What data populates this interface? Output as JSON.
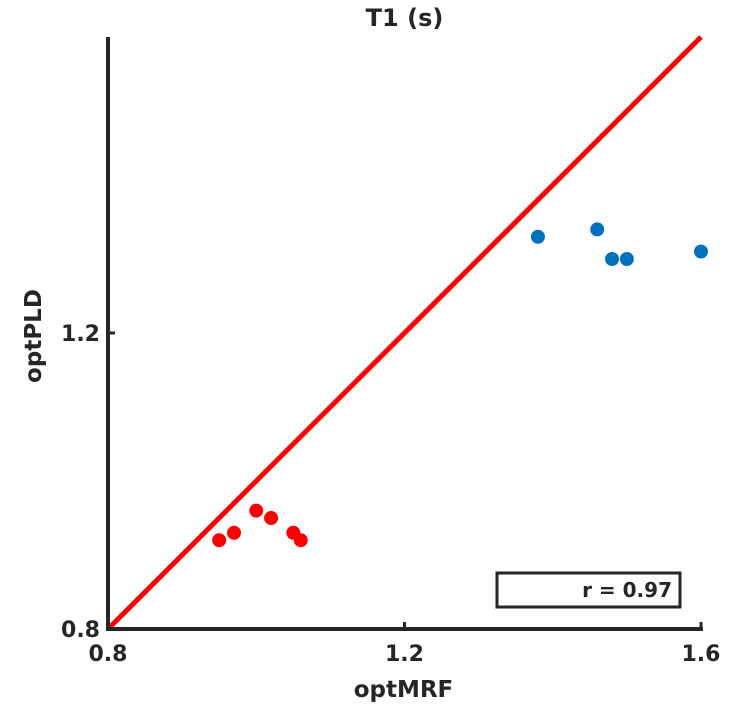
{
  "chart_data": {
    "type": "scatter",
    "title": "T1 (s)",
    "xlabel": "optMRF",
    "ylabel": "optPLD",
    "xlim": [
      0.8,
      1.6
    ],
    "ylim": [
      0.8,
      1.6
    ],
    "xticks": [
      "0.8",
      "1.2",
      "1.6"
    ],
    "yticks": [
      "0.8",
      "1.2"
    ],
    "grid": false,
    "series": [
      {
        "color": "#0072BD",
        "x": [
          1.38,
          1.46,
          1.48,
          1.5,
          1.6
        ],
        "y": [
          1.33,
          1.34,
          1.3,
          1.3,
          1.31
        ]
      },
      {
        "color": "#FF0000",
        "x": [
          0.95,
          0.97,
          1.0,
          1.02,
          1.05,
          1.06
        ],
        "y": [
          0.92,
          0.93,
          0.96,
          0.95,
          0.93,
          0.92
        ]
      }
    ],
    "identity_line": {
      "color": "#FF0000",
      "x": [
        0.8,
        1.6
      ],
      "y": [
        0.8,
        1.6
      ]
    },
    "annotation": {
      "text": "r = 0.97",
      "placement": "bottom-right"
    }
  }
}
